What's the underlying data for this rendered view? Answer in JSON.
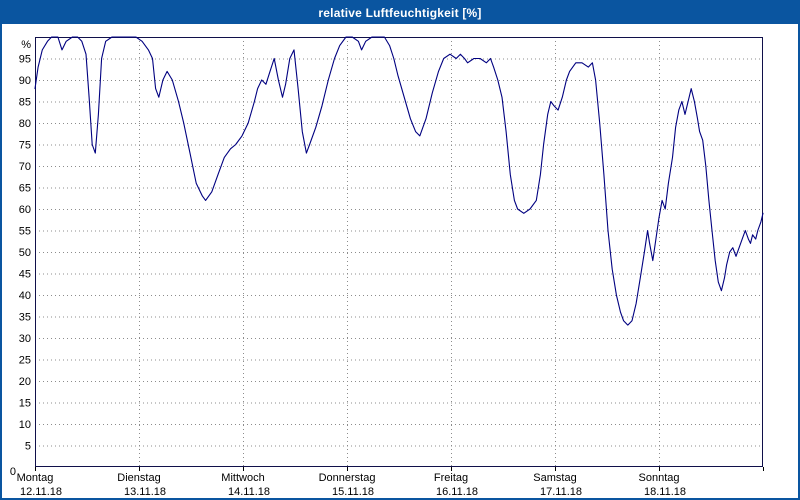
{
  "window": {
    "title": "relative Luftfeuchtigkeit [%]"
  },
  "colors": {
    "titlebar": "#0a55a0",
    "titlebar_text": "#ffffff",
    "plot_border": "#10104a",
    "grid": "#8c8c8c",
    "line": "#000080",
    "background": "#ffffff"
  },
  "chart_data": {
    "type": "line",
    "title": "relative Luftfeuchtigkeit [%]",
    "unit_label": "%",
    "origin_label": "0",
    "ylabel": "relative Luftfeuchtigkeit [%]",
    "xlabel": "",
    "ylim": [
      0,
      100
    ],
    "y_tick_step": 5,
    "y_ticks": [
      5,
      10,
      15,
      20,
      25,
      30,
      35,
      40,
      45,
      50,
      55,
      60,
      65,
      70,
      75,
      80,
      85,
      90,
      95
    ],
    "grid": true,
    "legend": "none",
    "x_range_days": [
      0,
      7
    ],
    "x_categories": [
      {
        "label": "Montag",
        "date": "12.11.18"
      },
      {
        "label": "Dienstag",
        "date": "13.11.18"
      },
      {
        "label": "Mittwoch",
        "date": "14.11.18"
      },
      {
        "label": "Donnerstag",
        "date": "15.11.18"
      },
      {
        "label": "Freitag",
        "date": "16.11.18"
      },
      {
        "label": "Samstag",
        "date": "17.11.18"
      },
      {
        "label": "Sonntag",
        "date": "18.11.18"
      }
    ],
    "series": [
      {
        "name": "relative Luftfeuchtigkeit",
        "unit": "%",
        "points": [
          [
            0,
            88
          ],
          [
            0.03,
            93
          ],
          [
            0.07,
            97
          ],
          [
            0.12,
            99
          ],
          [
            0.16,
            100
          ],
          [
            0.22,
            100
          ],
          [
            0.26,
            97
          ],
          [
            0.3,
            99
          ],
          [
            0.36,
            100
          ],
          [
            0.41,
            100
          ],
          [
            0.45,
            99
          ],
          [
            0.49,
            96
          ],
          [
            0.52,
            86
          ],
          [
            0.55,
            75
          ],
          [
            0.58,
            73
          ],
          [
            0.61,
            82
          ],
          [
            0.64,
            95
          ],
          [
            0.68,
            99
          ],
          [
            0.74,
            100
          ],
          [
            0.82,
            100
          ],
          [
            0.89,
            100
          ],
          [
            0.97,
            100
          ],
          [
            1.03,
            99
          ],
          [
            1.09,
            97
          ],
          [
            1.13,
            95
          ],
          [
            1.16,
            88
          ],
          [
            1.19,
            86
          ],
          [
            1.23,
            90
          ],
          [
            1.27,
            92
          ],
          [
            1.32,
            90
          ],
          [
            1.38,
            85
          ],
          [
            1.43,
            80
          ],
          [
            1.49,
            73
          ],
          [
            1.55,
            66
          ],
          [
            1.61,
            63
          ],
          [
            1.64,
            62
          ],
          [
            1.7,
            64
          ],
          [
            1.76,
            68
          ],
          [
            1.82,
            72
          ],
          [
            1.88,
            74
          ],
          [
            1.93,
            75
          ],
          [
            1.99,
            77
          ],
          [
            2.05,
            80
          ],
          [
            2.11,
            85
          ],
          [
            2.14,
            88
          ],
          [
            2.18,
            90
          ],
          [
            2.22,
            89
          ],
          [
            2.26,
            92
          ],
          [
            2.3,
            95
          ],
          [
            2.34,
            90
          ],
          [
            2.38,
            86
          ],
          [
            2.41,
            89
          ],
          [
            2.45,
            95
          ],
          [
            2.49,
            97
          ],
          [
            2.53,
            88
          ],
          [
            2.57,
            78
          ],
          [
            2.61,
            73
          ],
          [
            2.64,
            75
          ],
          [
            2.7,
            79
          ],
          [
            2.76,
            84
          ],
          [
            2.82,
            90
          ],
          [
            2.88,
            95
          ],
          [
            2.93,
            98
          ],
          [
            2.99,
            100
          ],
          [
            3.05,
            100
          ],
          [
            3.11,
            99
          ],
          [
            3.14,
            97
          ],
          [
            3.18,
            99
          ],
          [
            3.24,
            100
          ],
          [
            3.3,
            100
          ],
          [
            3.36,
            100
          ],
          [
            3.41,
            98
          ],
          [
            3.45,
            95
          ],
          [
            3.49,
            91
          ],
          [
            3.55,
            86
          ],
          [
            3.61,
            81
          ],
          [
            3.66,
            78
          ],
          [
            3.7,
            77
          ],
          [
            3.76,
            81
          ],
          [
            3.82,
            87
          ],
          [
            3.88,
            92
          ],
          [
            3.93,
            95
          ],
          [
            3.99,
            96
          ],
          [
            4.05,
            95
          ],
          [
            4.09,
            96
          ],
          [
            4.13,
            95
          ],
          [
            4.16,
            94
          ],
          [
            4.22,
            95
          ],
          [
            4.28,
            95
          ],
          [
            4.34,
            94
          ],
          [
            4.38,
            95
          ],
          [
            4.41,
            93
          ],
          [
            4.45,
            90
          ],
          [
            4.49,
            86
          ],
          [
            4.53,
            78
          ],
          [
            4.57,
            68
          ],
          [
            4.61,
            62
          ],
          [
            4.64,
            60
          ],
          [
            4.7,
            59
          ],
          [
            4.76,
            60
          ],
          [
            4.82,
            62
          ],
          [
            4.86,
            68
          ],
          [
            4.89,
            75
          ],
          [
            4.93,
            82
          ],
          [
            4.96,
            85
          ],
          [
            4.99,
            84
          ],
          [
            5.03,
            83
          ],
          [
            5.07,
            86
          ],
          [
            5.11,
            90
          ],
          [
            5.14,
            92
          ],
          [
            5.2,
            94
          ],
          [
            5.26,
            94
          ],
          [
            5.32,
            93
          ],
          [
            5.36,
            94
          ],
          [
            5.39,
            90
          ],
          [
            5.43,
            80
          ],
          [
            5.47,
            68
          ],
          [
            5.51,
            55
          ],
          [
            5.55,
            46
          ],
          [
            5.59,
            40
          ],
          [
            5.63,
            36
          ],
          [
            5.66,
            34
          ],
          [
            5.7,
            33
          ],
          [
            5.74,
            34
          ],
          [
            5.78,
            38
          ],
          [
            5.82,
            44
          ],
          [
            5.86,
            50
          ],
          [
            5.89,
            55
          ],
          [
            5.91,
            52
          ],
          [
            5.94,
            48
          ],
          [
            5.97,
            53
          ],
          [
            6.0,
            58
          ],
          [
            6.03,
            62
          ],
          [
            6.06,
            60
          ],
          [
            6.09,
            66
          ],
          [
            6.13,
            72
          ],
          [
            6.16,
            79
          ],
          [
            6.19,
            83
          ],
          [
            6.22,
            85
          ],
          [
            6.25,
            82
          ],
          [
            6.28,
            85
          ],
          [
            6.31,
            88
          ],
          [
            6.34,
            85
          ],
          [
            6.37,
            81
          ],
          [
            6.39,
            78
          ],
          [
            6.42,
            76
          ],
          [
            6.45,
            70
          ],
          [
            6.48,
            62
          ],
          [
            6.51,
            55
          ],
          [
            6.54,
            48
          ],
          [
            6.57,
            43
          ],
          [
            6.6,
            41
          ],
          [
            6.63,
            44
          ],
          [
            6.65,
            47
          ],
          [
            6.68,
            50
          ],
          [
            6.71,
            51
          ],
          [
            6.74,
            49
          ],
          [
            6.77,
            51
          ],
          [
            6.8,
            53
          ],
          [
            6.83,
            55
          ],
          [
            6.86,
            53
          ],
          [
            6.88,
            52
          ],
          [
            6.9,
            54
          ],
          [
            6.93,
            53
          ],
          [
            6.95,
            55
          ],
          [
            6.98,
            57
          ],
          [
            7.0,
            59
          ]
        ]
      }
    ]
  }
}
